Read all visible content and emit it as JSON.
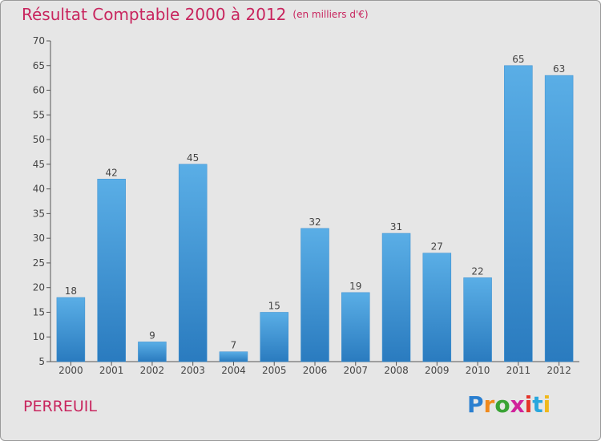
{
  "title": "Résultat Comptable 2000 à 2012",
  "subtitle": "(en milliers d'€)",
  "commune": "PERREUIL",
  "logo": {
    "letters": [
      "P",
      "r",
      "o",
      "x",
      "i",
      "t",
      "i"
    ],
    "colors": [
      "#2a7fd0",
      "#f08a1c",
      "#3aa335",
      "#d0219a",
      "#e5342a",
      "#2aa7dd",
      "#f0b81c"
    ]
  },
  "colors": {
    "bar_top": "#5aaee6",
    "bar_bottom": "#2a7bbf",
    "axis": "#555555",
    "grid_bg": "#e6e6e6",
    "text": "#444444"
  },
  "chart_data": {
    "type": "bar",
    "title": "Résultat Comptable 2000 à 2012",
    "subtitle": "(en milliers d'€)",
    "xlabel": "",
    "ylabel": "",
    "categories": [
      "2000",
      "2001",
      "2002",
      "2003",
      "2004",
      "2005",
      "2006",
      "2007",
      "2008",
      "2009",
      "2010",
      "2011",
      "2012"
    ],
    "values": [
      18,
      42,
      9,
      45,
      7,
      15,
      32,
      19,
      31,
      27,
      22,
      65,
      63
    ],
    "ylim": [
      5,
      70
    ],
    "yticks": [
      5,
      10,
      15,
      20,
      25,
      30,
      35,
      40,
      45,
      50,
      55,
      60,
      65,
      70
    ],
    "grid": false,
    "data_labels": true
  }
}
